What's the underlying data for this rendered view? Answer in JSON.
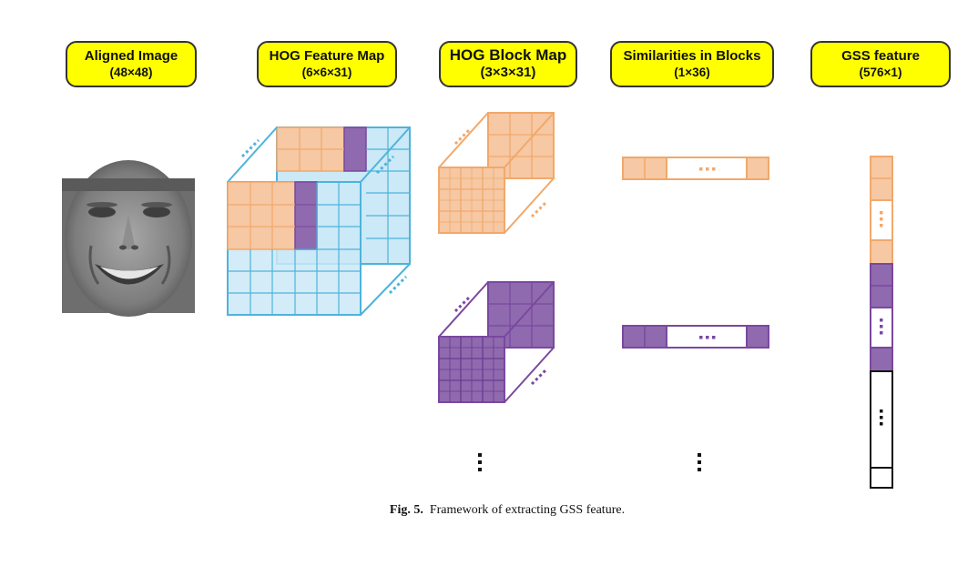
{
  "stages": [
    {
      "title": "Aligned Image",
      "size": "(48×48)"
    },
    {
      "title": "HOG Feature Map",
      "size": "(6×6×31)"
    },
    {
      "title": "HOG Block Map",
      "size": "(3×3×31)"
    },
    {
      "title": "Similarities in Blocks",
      "size": "(1×36)"
    },
    {
      "title": "GSS feature",
      "size": "(576×1)"
    }
  ],
  "caption": {
    "label": "Fig. 5.",
    "text": "Framework of extracting GSS feature."
  },
  "colors": {
    "header_fill": "#ffff00",
    "blue": "#4eb3dd",
    "orange": "#f2a86a",
    "purple": "#7a48a0"
  },
  "icons": {
    "aligned_image": "grayscale-face-image"
  }
}
